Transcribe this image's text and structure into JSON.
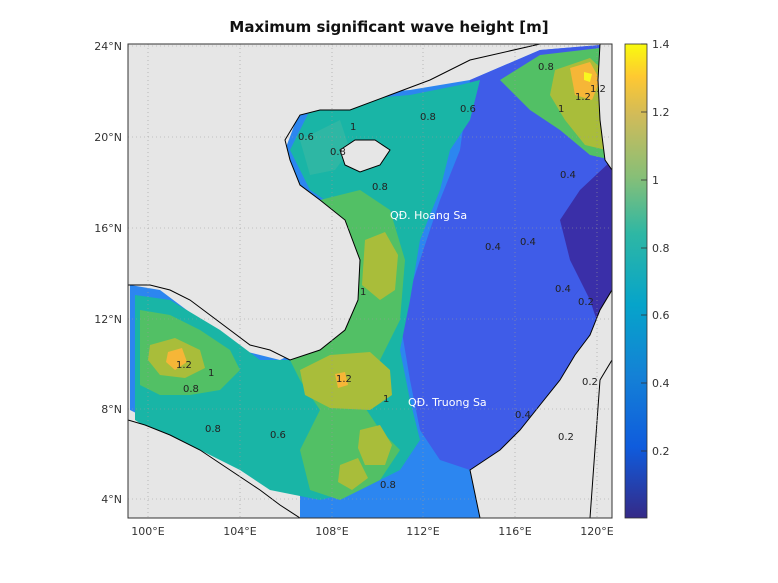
{
  "title": "Maximum significant wave height [m]",
  "map": {
    "x_ticks": [
      "100°E",
      "104°E",
      "108°E",
      "112°E",
      "116°E",
      "120°E"
    ],
    "y_ticks": [
      "24°N",
      "20°N",
      "16°N",
      "12°N",
      "8°N",
      "4°N"
    ],
    "annotations": [
      {
        "text": "QĐ. Hoang Sa"
      },
      {
        "text": "QĐ. Truong Sa"
      }
    ],
    "contour_labels": [
      "0.6",
      "0.8",
      "1",
      "1.2",
      "0.6",
      "0.8",
      "0.4",
      "0.4",
      "0.4",
      "0.2",
      "0.2",
      "0.8",
      "1",
      "1.2",
      "1",
      "0.8",
      "0.6",
      "0.8",
      "1.2",
      "1",
      "0.8",
      "0.4",
      "0.2",
      "1.2",
      "1",
      "0.8",
      "0.4"
    ]
  },
  "colorbar": {
    "ticks": [
      "1.4",
      "1.2",
      "1",
      "0.8",
      "0.6",
      "0.4",
      "0.2"
    ],
    "range": [
      0,
      1.4
    ],
    "colormap": "parula"
  },
  "colors": {
    "land": "#e6e6e6",
    "deep_purple": "#3a2fa8",
    "blue": "#3f5ce8",
    "mid_blue": "#2c86f0",
    "cyan": "#1aa7d8",
    "teal": "#19b5a6",
    "green": "#52c065",
    "yellowgreen": "#a9bd3a",
    "orange": "#f6b637",
    "yellow": "#f9f720"
  }
}
